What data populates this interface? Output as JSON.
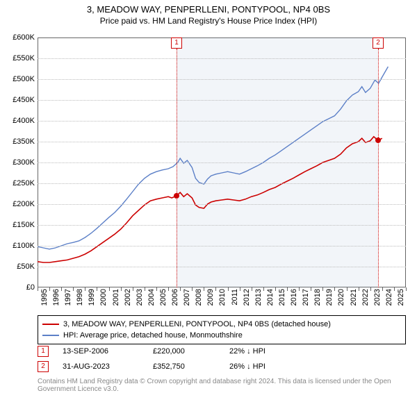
{
  "title": "3, MEADOW WAY, PENPERLLENI, PONTYPOOL, NP4 0BS",
  "subtitle": "Price paid vs. HM Land Registry's House Price Index (HPI)",
  "chart": {
    "type": "line",
    "background_color": "#ffffff",
    "grid_color": "#bbbbbb",
    "border_color": "#666666",
    "shade_color": "rgba(130,160,200,0.10)",
    "x": {
      "min": 1995,
      "max": 2026,
      "step": 1
    },
    "y": {
      "min": 0,
      "max": 600000,
      "step": 50000,
      "prefix": "£",
      "suffix": "K",
      "divide": 1000
    },
    "label_fontsize": 11,
    "series": [
      {
        "name": "price",
        "color": "#cc0000",
        "width": 1.6,
        "points": [
          [
            1995,
            62000
          ],
          [
            1995.5,
            60000
          ],
          [
            1996,
            60000
          ],
          [
            1996.5,
            62000
          ],
          [
            1997,
            64000
          ],
          [
            1997.5,
            66000
          ],
          [
            1998,
            70000
          ],
          [
            1998.5,
            74000
          ],
          [
            1999,
            80000
          ],
          [
            1999.5,
            88000
          ],
          [
            2000,
            98000
          ],
          [
            2000.5,
            108000
          ],
          [
            2001,
            118000
          ],
          [
            2001.5,
            128000
          ],
          [
            2002,
            140000
          ],
          [
            2002.5,
            155000
          ],
          [
            2003,
            172000
          ],
          [
            2003.5,
            185000
          ],
          [
            2004,
            198000
          ],
          [
            2004.5,
            208000
          ],
          [
            2005,
            212000
          ],
          [
            2005.5,
            215000
          ],
          [
            2006,
            218000
          ],
          [
            2006.3,
            215000
          ],
          [
            2006.7,
            220000
          ],
          [
            2007,
            228000
          ],
          [
            2007.3,
            218000
          ],
          [
            2007.6,
            225000
          ],
          [
            2008,
            215000
          ],
          [
            2008.3,
            198000
          ],
          [
            2008.6,
            192000
          ],
          [
            2009,
            190000
          ],
          [
            2009.3,
            200000
          ],
          [
            2009.6,
            205000
          ],
          [
            2010,
            208000
          ],
          [
            2010.5,
            210000
          ],
          [
            2011,
            212000
          ],
          [
            2011.5,
            210000
          ],
          [
            2012,
            208000
          ],
          [
            2012.5,
            212000
          ],
          [
            2013,
            218000
          ],
          [
            2013.5,
            222000
          ],
          [
            2014,
            228000
          ],
          [
            2014.5,
            235000
          ],
          [
            2015,
            240000
          ],
          [
            2015.5,
            248000
          ],
          [
            2016,
            255000
          ],
          [
            2016.5,
            262000
          ],
          [
            2017,
            270000
          ],
          [
            2017.5,
            278000
          ],
          [
            2018,
            285000
          ],
          [
            2018.5,
            292000
          ],
          [
            2019,
            300000
          ],
          [
            2019.5,
            305000
          ],
          [
            2020,
            310000
          ],
          [
            2020.5,
            320000
          ],
          [
            2021,
            335000
          ],
          [
            2021.5,
            345000
          ],
          [
            2022,
            350000
          ],
          [
            2022.3,
            358000
          ],
          [
            2022.6,
            348000
          ],
          [
            2023,
            352000
          ],
          [
            2023.3,
            362000
          ],
          [
            2023.66,
            352750
          ],
          [
            2024,
            358000
          ]
        ]
      },
      {
        "name": "hpi",
        "color": "#5b7fc7",
        "width": 1.4,
        "points": [
          [
            1995,
            98000
          ],
          [
            1995.5,
            95000
          ],
          [
            1996,
            92000
          ],
          [
            1996.5,
            95000
          ],
          [
            1997,
            100000
          ],
          [
            1997.5,
            105000
          ],
          [
            1998,
            108000
          ],
          [
            1998.5,
            112000
          ],
          [
            1999,
            120000
          ],
          [
            1999.5,
            130000
          ],
          [
            2000,
            142000
          ],
          [
            2000.5,
            155000
          ],
          [
            2001,
            168000
          ],
          [
            2001.5,
            180000
          ],
          [
            2002,
            195000
          ],
          [
            2002.5,
            212000
          ],
          [
            2003,
            230000
          ],
          [
            2003.5,
            248000
          ],
          [
            2004,
            262000
          ],
          [
            2004.5,
            272000
          ],
          [
            2005,
            278000
          ],
          [
            2005.5,
            282000
          ],
          [
            2006,
            285000
          ],
          [
            2006.4,
            290000
          ],
          [
            2006.8,
            300000
          ],
          [
            2007,
            310000
          ],
          [
            2007.3,
            298000
          ],
          [
            2007.6,
            305000
          ],
          [
            2008,
            288000
          ],
          [
            2008.3,
            262000
          ],
          [
            2008.6,
            252000
          ],
          [
            2009,
            248000
          ],
          [
            2009.3,
            260000
          ],
          [
            2009.6,
            268000
          ],
          [
            2010,
            272000
          ],
          [
            2010.5,
            275000
          ],
          [
            2011,
            278000
          ],
          [
            2011.5,
            275000
          ],
          [
            2012,
            272000
          ],
          [
            2012.5,
            278000
          ],
          [
            2013,
            285000
          ],
          [
            2013.5,
            292000
          ],
          [
            2014,
            300000
          ],
          [
            2014.5,
            310000
          ],
          [
            2015,
            318000
          ],
          [
            2015.5,
            328000
          ],
          [
            2016,
            338000
          ],
          [
            2016.5,
            348000
          ],
          [
            2017,
            358000
          ],
          [
            2017.5,
            368000
          ],
          [
            2018,
            378000
          ],
          [
            2018.5,
            388000
          ],
          [
            2019,
            398000
          ],
          [
            2019.5,
            405000
          ],
          [
            2020,
            412000
          ],
          [
            2020.5,
            428000
          ],
          [
            2021,
            448000
          ],
          [
            2021.5,
            462000
          ],
          [
            2022,
            470000
          ],
          [
            2022.3,
            482000
          ],
          [
            2022.6,
            468000
          ],
          [
            2023,
            478000
          ],
          [
            2023.4,
            498000
          ],
          [
            2023.7,
            490000
          ],
          [
            2024,
            505000
          ],
          [
            2024.5,
            530000
          ]
        ]
      }
    ],
    "markers": [
      {
        "n": "1",
        "year": 2006.7,
        "value": 220000,
        "dot_color": "#cc0000"
      },
      {
        "n": "2",
        "year": 2023.66,
        "value": 352750,
        "dot_color": "#cc0000"
      }
    ]
  },
  "legend": {
    "items": [
      {
        "color": "#cc0000",
        "label": "3, MEADOW WAY, PENPERLLENI, PONTYPOOL, NP4 0BS (detached house)"
      },
      {
        "color": "#5b7fc7",
        "label": "HPI: Average price, detached house, Monmouthshire"
      }
    ]
  },
  "annotations": [
    {
      "n": "1",
      "date": "13-SEP-2006",
      "price": "£220,000",
      "pct": "22% ↓ HPI"
    },
    {
      "n": "2",
      "date": "31-AUG-2023",
      "price": "£352,750",
      "pct": "26% ↓ HPI"
    }
  ],
  "footnote": "Contains HM Land Registry data © Crown copyright and database right 2024.\nThis data is licensed under the Open Government Licence v3.0."
}
